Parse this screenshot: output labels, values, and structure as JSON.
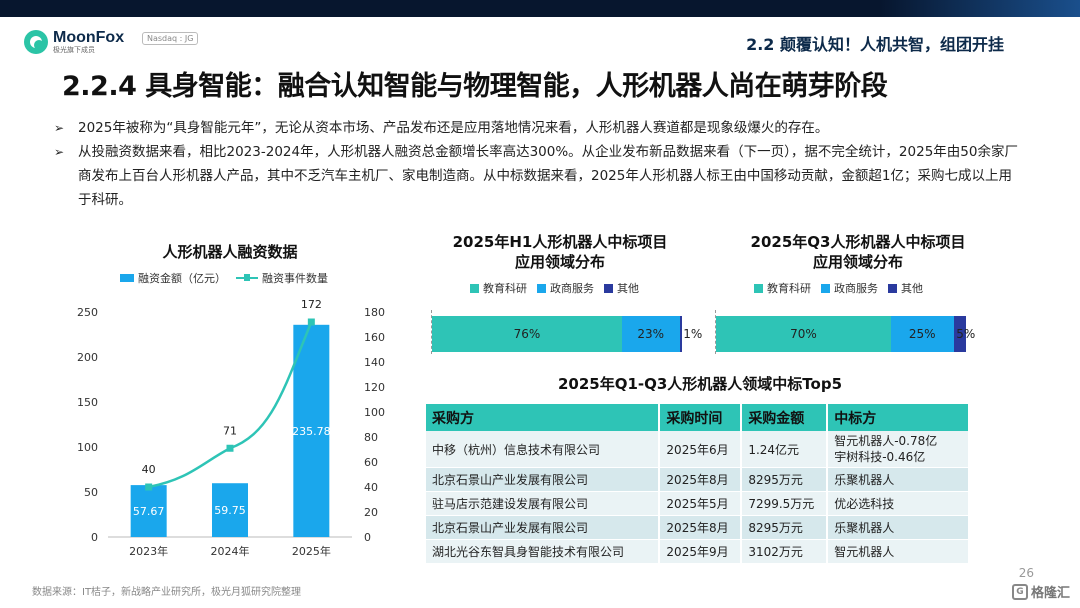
{
  "header": {
    "logo_name": "MoonFox",
    "logo_sub": "极光旗下成员",
    "nasdaq": "Nasdaq : JG",
    "section": "2.2 颠覆认知！人机共智，组团开挂"
  },
  "title": "2.2.4 具身智能：融合认知智能与物理智能，人形机器人尚在萌芽阶段",
  "bullets": [
    {
      "mark": "➢",
      "text": "2025年被称为“具身智能元年”，无论从资本市场、产品发布还是应用落地情况来看，人形机器人赛道都是现象级爆火的存在。"
    },
    {
      "mark": "➢",
      "text": "从投融资数据来看，相比2023-2024年，人形机器人融资总金额增长率高达300%。从企业发布新品数据来看（下一页），据不完全统计，2025年由50余家厂商发布上百台人形机器人产品，其中不乏汽车主机厂、家电制造商。从中标数据来看，2025年人形机器人标王由中国移动贡献，金额超1亿；采购七成以上用于科研。"
    }
  ],
  "chart_data": [
    {
      "type": "bar",
      "title": "人形机器人融资数据",
      "categories": [
        "2023年",
        "2024年",
        "2025年"
      ],
      "series": [
        {
          "name": "融资金额（亿元）",
          "kind": "bar",
          "axis": "left",
          "values": [
            57.67,
            59.75,
            235.78
          ],
          "labels": [
            "57.67",
            "59.75",
            "235.78"
          ]
        },
        {
          "name": "融资事件数量",
          "kind": "line",
          "axis": "right",
          "values": [
            40,
            71,
            172
          ],
          "labels": [
            "40",
            "71",
            "172"
          ]
        }
      ],
      "ylim": [
        0,
        250
      ],
      "yticks": [
        "0",
        "50",
        "100",
        "150",
        "200",
        "250"
      ],
      "y2lim": [
        0,
        180
      ],
      "y2ticks": [
        "0",
        "20",
        "40",
        "60",
        "80",
        "100",
        "120",
        "140",
        "160",
        "180"
      ],
      "colors": {
        "bar": "#1aa7ec",
        "line": "#2ec4b6"
      }
    },
    {
      "type": "bar",
      "title": "2025年H1人形机器人中标项目应用领域分布",
      "title_lines": [
        "2025年H1人形机器人中标项目",
        "应用领域分布"
      ],
      "orientation": "horizontal-stacked-percent",
      "series": [
        {
          "name": "教育科研",
          "value": 76,
          "label": "76%"
        },
        {
          "name": "政商服务",
          "value": 23,
          "label": "23%"
        },
        {
          "name": "其他",
          "value": 1,
          "label": "1%"
        }
      ]
    },
    {
      "type": "bar",
      "title": "2025年Q3人形机器人中标项目应用领域分布",
      "title_lines": [
        "2025年Q3人形机器人中标项目",
        "应用领域分布"
      ],
      "orientation": "horizontal-stacked-percent",
      "series": [
        {
          "name": "教育科研",
          "value": 70,
          "label": "70%"
        },
        {
          "name": "政商服务",
          "value": 25,
          "label": "25%"
        },
        {
          "name": "其他",
          "value": 5,
          "label": "5%"
        }
      ]
    }
  ],
  "segment_colors": [
    "#2ec4b6",
    "#1aa7ec",
    "#2a3a9e"
  ],
  "table": {
    "title": "2025年Q1-Q3人形机器人领域中标Top5",
    "headers": [
      "采购方",
      "采购时间",
      "采购金额",
      "中标方"
    ],
    "rows": [
      {
        "buyer": "中移（杭州）信息技术有限公司",
        "time": "2025年6月",
        "amount": "1.24亿元",
        "winner": [
          "智元机器人-0.78亿",
          "宇树科技-0.46亿"
        ]
      },
      {
        "buyer": "北京石景山产业发展有限公司",
        "time": "2025年8月",
        "amount": "8295万元",
        "winner": [
          "乐聚机器人"
        ]
      },
      {
        "buyer": "驻马店示范建设发展有限公司",
        "time": "2025年5月",
        "amount": "7299.5万元",
        "winner": [
          "优必选科技"
        ]
      },
      {
        "buyer": "北京石景山产业发展有限公司",
        "time": "2025年8月",
        "amount": "8295万元",
        "winner": [
          "乐聚机器人"
        ]
      },
      {
        "buyer": "湖北光谷东智具身智能技术有限公司",
        "time": "2025年9月",
        "amount": "3102万元",
        "winner": [
          "智元机器人"
        ]
      }
    ]
  },
  "footer": {
    "source": "数据来源：IT桔子，新战略产业研究所，极光月狐研究院整理",
    "page": "26",
    "watermark_icon": "G",
    "watermark_text": "格隆汇"
  }
}
